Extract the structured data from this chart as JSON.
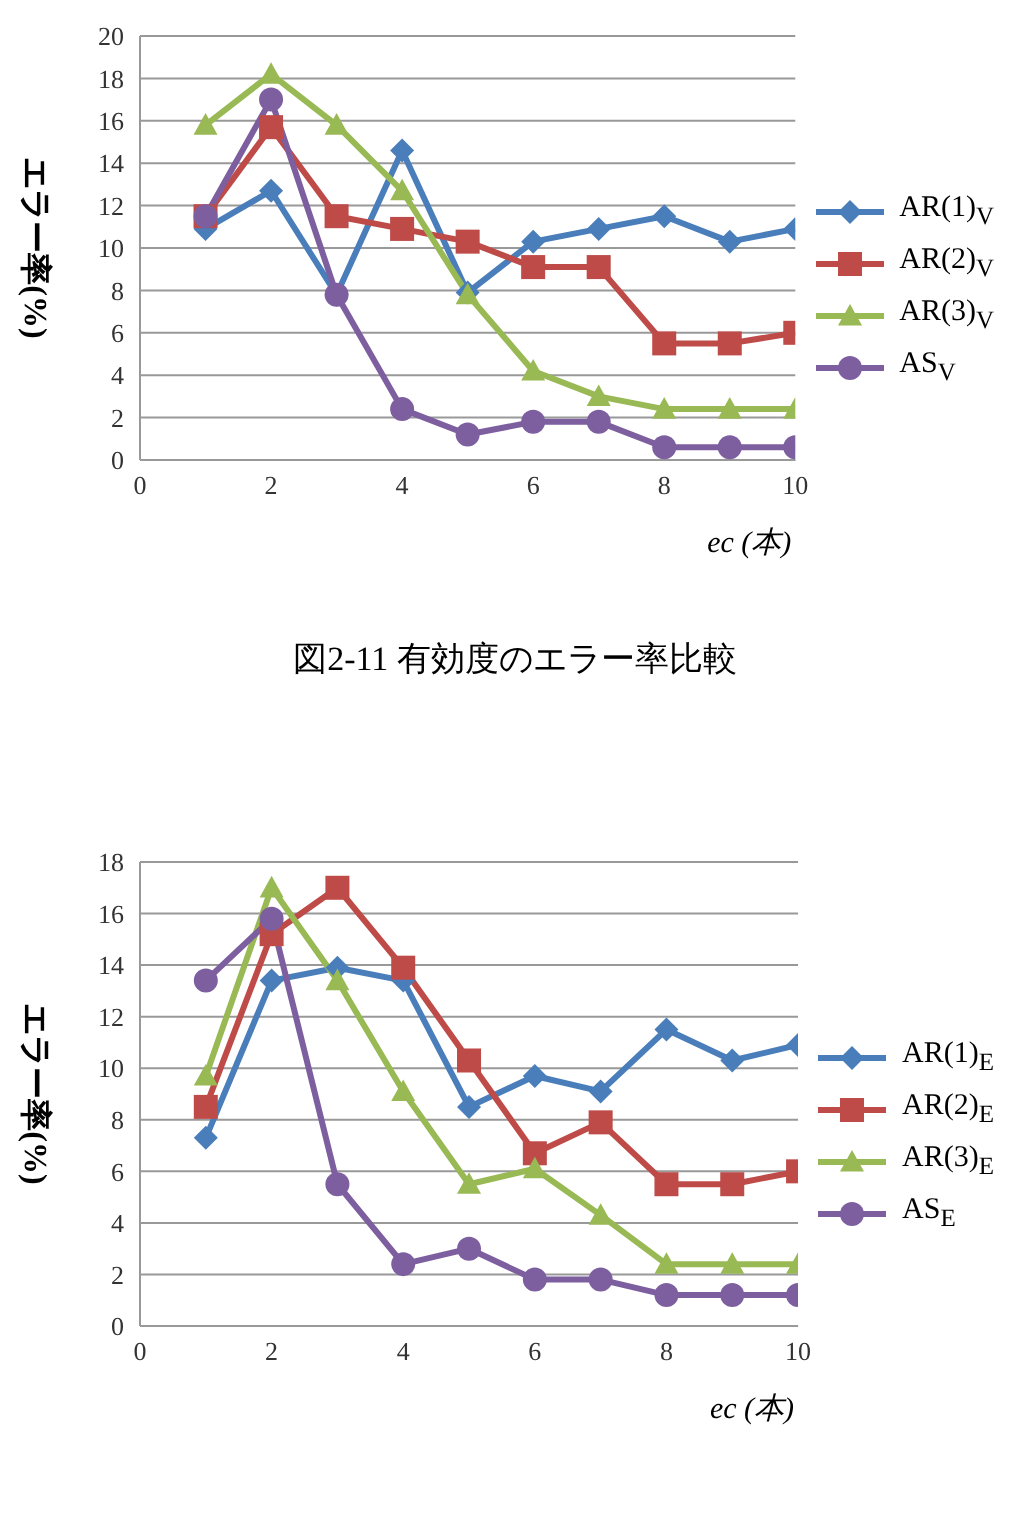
{
  "chart_data": [
    {
      "type": "line",
      "xlabel": "ec (本)",
      "ylabel": "エラー率(%)",
      "x": [
        1,
        2,
        3,
        4,
        5,
        6,
        7,
        8,
        9,
        10
      ],
      "xlim": [
        0,
        10
      ],
      "xticks": [
        0,
        2,
        4,
        6,
        8,
        10
      ],
      "ylim": [
        0,
        20
      ],
      "yticks": [
        0,
        2,
        4,
        6,
        8,
        10,
        12,
        14,
        16,
        18,
        20
      ],
      "grid": "y",
      "legend": "right",
      "annotations": [
        "図2-11   有効度のエラー率比較"
      ],
      "series": [
        {
          "name": "AR(1)$_{V}$",
          "color": "#4a7ebb",
          "marker": "diamond",
          "values": [
            10.9,
            12.7,
            7.8,
            14.6,
            7.9,
            10.3,
            10.9,
            11.5,
            10.3,
            10.9
          ]
        },
        {
          "name": "AR(2)$_{V}$",
          "color": "#be4b48",
          "marker": "square",
          "values": [
            11.5,
            15.7,
            11.5,
            10.9,
            10.3,
            9.1,
            9.1,
            5.5,
            5.5,
            6.0
          ]
        },
        {
          "name": "AR(3)$_{V}$",
          "color": "#98b954",
          "marker": "triangle",
          "values": [
            15.8,
            18.2,
            15.8,
            12.7,
            7.8,
            4.2,
            3.0,
            2.4,
            2.4,
            2.4
          ]
        },
        {
          "name": "AS$_{V}$",
          "color": "#7d5fa0",
          "marker": "circle",
          "values": [
            11.5,
            17.0,
            7.8,
            2.4,
            1.2,
            1.8,
            1.8,
            0.6,
            0.6,
            0.6
          ]
        }
      ]
    },
    {
      "type": "line",
      "xlabel": "ec (本)",
      "ylabel": "エラー率(%)",
      "x": [
        1,
        2,
        3,
        4,
        5,
        6,
        7,
        8,
        9,
        10
      ],
      "xlim": [
        0,
        10
      ],
      "xticks": [
        0,
        2,
        4,
        6,
        8,
        10
      ],
      "ylim": [
        0,
        18
      ],
      "yticks": [
        0,
        2,
        4,
        6,
        8,
        10,
        12,
        14,
        16,
        18
      ],
      "grid": "y",
      "legend": "right",
      "series": [
        {
          "name": "AR(1)$_{E}$",
          "color": "#4a7ebb",
          "marker": "diamond",
          "values": [
            7.3,
            13.4,
            13.9,
            13.4,
            8.5,
            9.7,
            9.1,
            11.5,
            10.3,
            10.9
          ]
        },
        {
          "name": "AR(2)$_{E}$",
          "color": "#be4b48",
          "marker": "square",
          "values": [
            8.5,
            15.2,
            17.0,
            13.9,
            10.3,
            6.7,
            7.9,
            5.5,
            5.5,
            6.0
          ]
        },
        {
          "name": "AR(3)$_{E}$",
          "color": "#98b954",
          "marker": "triangle",
          "values": [
            9.7,
            17.0,
            13.4,
            9.1,
            5.5,
            6.1,
            4.3,
            2.4,
            2.4,
            2.4
          ]
        },
        {
          "name": "AS$_{E}$",
          "color": "#7d5fa0",
          "marker": "circle",
          "values": [
            13.4,
            15.8,
            5.5,
            2.4,
            3.0,
            1.8,
            1.8,
            1.2,
            1.2,
            1.2
          ]
        }
      ]
    }
  ]
}
